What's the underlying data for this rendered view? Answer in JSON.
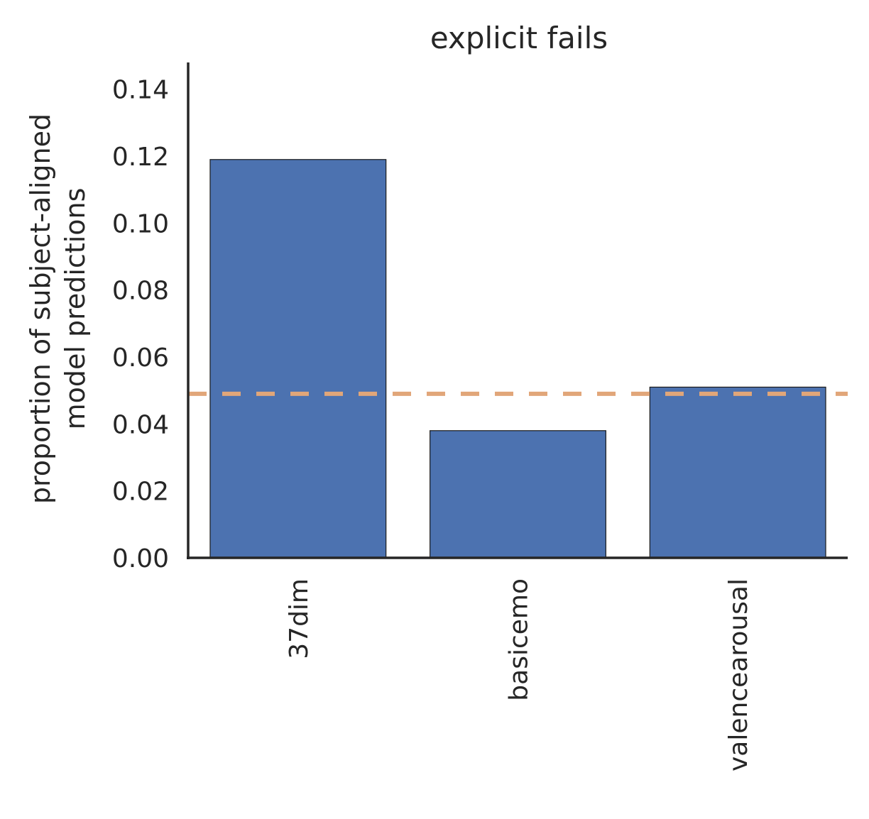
{
  "chart_data": {
    "type": "bar",
    "title": "explicit fails",
    "xlabel": "",
    "ylabel_lines": [
      "proportion of subject-aligned",
      "model predictions"
    ],
    "categories": [
      "37dim",
      "basicemo",
      "valencearousal"
    ],
    "values": [
      0.119,
      0.038,
      0.051
    ],
    "ylim": [
      0,
      0.148
    ],
    "yticks": [
      0.0,
      0.02,
      0.04,
      0.06,
      0.08,
      0.1,
      0.12,
      0.14
    ],
    "ytick_labels": [
      "0.00",
      "0.02",
      "0.04",
      "0.06",
      "0.08",
      "0.10",
      "0.12",
      "0.14"
    ],
    "reference_line": {
      "value": 0.049,
      "style": "dashed",
      "color": "#e1a679"
    },
    "bar_color": "#4c72b0",
    "grid": false,
    "legend": "none"
  }
}
